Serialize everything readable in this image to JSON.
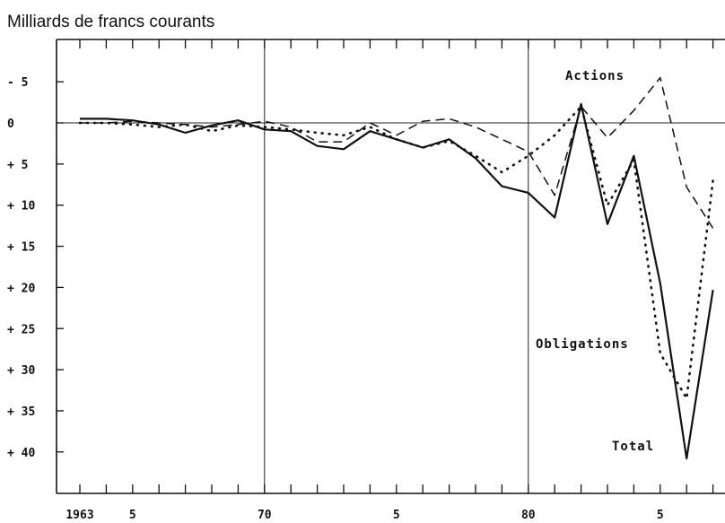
{
  "chart_data": {
    "type": "line",
    "title": "Milliards de francs courants",
    "xlabel": "",
    "ylabel": "",
    "xlim": [
      1963,
      1987
    ],
    "ylim": [
      -10,
      45
    ],
    "y_axis_inverted": true,
    "grid": "vertical lines at 1970 and 1980, horizontal line at 0",
    "x_ticks": [
      {
        "value": 1963,
        "label": "1963"
      },
      {
        "value": 1965,
        "label": "5"
      },
      {
        "value": 1970,
        "label": "70"
      },
      {
        "value": 1975,
        "label": "5"
      },
      {
        "value": 1980,
        "label": "80"
      },
      {
        "value": 1985,
        "label": "5"
      }
    ],
    "y_ticks": [
      {
        "value": -5,
        "label": "- 5"
      },
      {
        "value": 0,
        "label": "0"
      },
      {
        "value": 5,
        "label": "+ 5"
      },
      {
        "value": 10,
        "label": "+ 10"
      },
      {
        "value": 15,
        "label": "+ 15"
      },
      {
        "value": 20,
        "label": "+ 20"
      },
      {
        "value": 25,
        "label": "+ 25"
      },
      {
        "value": 30,
        "label": "+ 30"
      },
      {
        "value": 35,
        "label": "+ 35"
      },
      {
        "value": 40,
        "label": "+ 40"
      }
    ],
    "x": [
      1963,
      1964,
      1965,
      1966,
      1967,
      1968,
      1969,
      1970,
      1971,
      1972,
      1973,
      1974,
      1975,
      1976,
      1977,
      1978,
      1979,
      1980,
      1981,
      1982,
      1983,
      1984,
      1985,
      1986,
      1987
    ],
    "series": [
      {
        "name": "Actions",
        "style": "dashed",
        "values": [
          0.0,
          0.0,
          -0.2,
          0.0,
          0.2,
          0.5,
          0.2,
          -0.2,
          0.5,
          2.3,
          2.3,
          0.0,
          1.5,
          -0.2,
          -0.5,
          0.5,
          2.0,
          3.5,
          8.8,
          -2.0,
          1.8,
          -1.5,
          -5.5,
          7.8,
          12.8
        ]
      },
      {
        "name": "Obligations",
        "style": "dotted",
        "values": [
          0.0,
          0.0,
          0.2,
          0.5,
          0.2,
          1.0,
          0.3,
          0.5,
          0.8,
          1.2,
          1.5,
          0.5,
          2.0,
          3.0,
          2.2,
          4.0,
          6.0,
          4.0,
          1.5,
          -2.0,
          10.0,
          4.5,
          28.0,
          33.5,
          7.0
        ]
      },
      {
        "name": "Total",
        "style": "solid",
        "values": [
          -0.5,
          -0.5,
          -0.3,
          0.2,
          1.2,
          0.3,
          -0.3,
          0.8,
          1.0,
          2.8,
          3.2,
          1.0,
          2.0,
          3.0,
          2.0,
          4.3,
          7.7,
          8.5,
          11.5,
          -2.3,
          12.3,
          4.0,
          19.5,
          40.8,
          20.3
        ]
      }
    ]
  }
}
